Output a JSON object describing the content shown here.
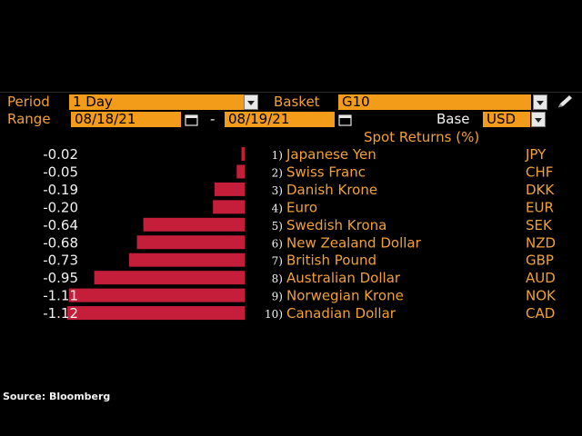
{
  "controls": {
    "period_label": "Period",
    "period_value": "1 Day",
    "basket_label": "Basket",
    "basket_value": "G10",
    "range_label": "Range",
    "range_start": "08/18/21",
    "range_separator": "-",
    "range_end": "08/19/21",
    "base_label": "Base",
    "base_value": "USD",
    "accent_color": "#f39c1a"
  },
  "chart_data": {
    "type": "bar",
    "orientation": "horizontal",
    "title": "Spot Returns (%)",
    "bar_color": "#c41e3a",
    "ranks": [
      "1)",
      "2)",
      "3)",
      "4)",
      "5)",
      "6)",
      "7)",
      "8)",
      "9)",
      "10)"
    ],
    "categories": [
      "Japanese Yen",
      "Swiss Franc",
      "Danish Krone",
      "Euro",
      "Swedish Krona",
      "New Zealand Dollar",
      "British Pound",
      "Australian Dollar",
      "Norwegian Krone",
      "Canadian Dollar"
    ],
    "codes": [
      "JPY",
      "CHF",
      "DKK",
      "EUR",
      "SEK",
      "NZD",
      "GBP",
      "AUD",
      "NOK",
      "CAD"
    ],
    "values": [
      -0.02,
      -0.05,
      -0.19,
      -0.2,
      -0.64,
      -0.68,
      -0.73,
      -0.95,
      -1.11,
      -1.12
    ],
    "value_labels": [
      "-0.02",
      "-0.05",
      "-0.19",
      "-0.20",
      "-0.64",
      "-0.68",
      "-0.73",
      "-0.95",
      "-1.11",
      "-1.12"
    ],
    "xlim": [
      -1.12,
      0
    ]
  },
  "footer": {
    "source": "Source: Bloomberg"
  }
}
